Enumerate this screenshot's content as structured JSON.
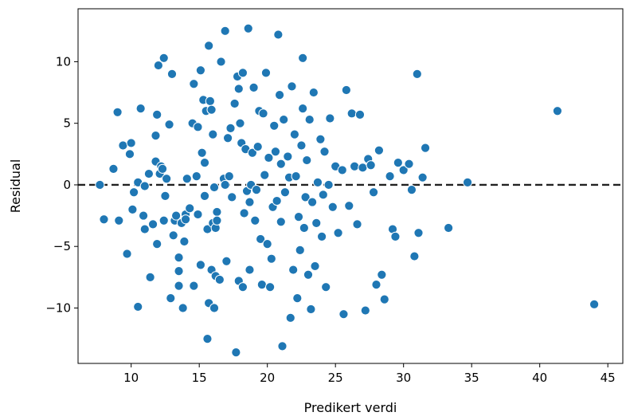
{
  "chart_data": {
    "type": "scatter",
    "xlabel": "Predikert verdi",
    "ylabel": "Residual",
    "xlim": [
      6.1,
      46.1
    ],
    "ylim": [
      -14.5,
      14.3
    ],
    "xticks": [
      10,
      15,
      20,
      25,
      30,
      35,
      40,
      45
    ],
    "yticks": [
      -10,
      -5,
      0,
      5,
      10
    ],
    "grid": false,
    "reference_line": {
      "y": 0,
      "style": "dashed"
    },
    "point_color": "#1f77b4",
    "points": [
      [
        7.7,
        0.0
      ],
      [
        8.0,
        -2.8
      ],
      [
        8.7,
        1.3
      ],
      [
        9.0,
        5.9
      ],
      [
        9.1,
        -2.9
      ],
      [
        9.4,
        3.2
      ],
      [
        9.7,
        -5.6
      ],
      [
        9.9,
        2.5
      ],
      [
        10.0,
        3.4
      ],
      [
        10.1,
        -2.0
      ],
      [
        10.2,
        -0.6
      ],
      [
        10.5,
        0.2
      ],
      [
        10.5,
        -9.9
      ],
      [
        10.7,
        6.2
      ],
      [
        10.9,
        -2.5
      ],
      [
        11.0,
        -0.1
      ],
      [
        11.0,
        -3.6
      ],
      [
        11.3,
        0.9
      ],
      [
        11.4,
        -7.5
      ],
      [
        11.6,
        -3.2
      ],
      [
        11.8,
        1.9
      ],
      [
        11.8,
        4.0
      ],
      [
        11.9,
        5.7
      ],
      [
        11.9,
        -4.8
      ],
      [
        12.0,
        9.7
      ],
      [
        12.1,
        0.9
      ],
      [
        12.2,
        1.5
      ],
      [
        12.3,
        1.3
      ],
      [
        12.4,
        -2.9
      ],
      [
        12.4,
        10.3
      ],
      [
        12.5,
        -0.9
      ],
      [
        12.6,
        0.5
      ],
      [
        12.8,
        4.9
      ],
      [
        12.9,
        -9.2
      ],
      [
        13.0,
        9.0
      ],
      [
        13.1,
        -4.1
      ],
      [
        13.2,
        -2.9
      ],
      [
        13.3,
        -2.5
      ],
      [
        13.5,
        -5.9
      ],
      [
        13.5,
        -7.0
      ],
      [
        13.5,
        -8.2
      ],
      [
        13.7,
        -3.1
      ],
      [
        13.8,
        -10.0
      ],
      [
        13.9,
        -4.6
      ],
      [
        14.0,
        -2.4
      ],
      [
        14.0,
        -2.8
      ],
      [
        14.1,
        0.5
      ],
      [
        14.3,
        -1.9
      ],
      [
        14.5,
        5.0
      ],
      [
        14.6,
        -8.2
      ],
      [
        14.6,
        8.2
      ],
      [
        14.8,
        0.7
      ],
      [
        14.9,
        -2.4
      ],
      [
        14.9,
        4.7
      ],
      [
        15.1,
        9.3
      ],
      [
        15.1,
        -6.5
      ],
      [
        15.2,
        2.6
      ],
      [
        15.3,
        6.9
      ],
      [
        15.4,
        1.8
      ],
      [
        15.4,
        -0.9
      ],
      [
        15.5,
        6.0
      ],
      [
        15.6,
        -12.5
      ],
      [
        15.6,
        -3.6
      ],
      [
        15.7,
        11.3
      ],
      [
        15.7,
        -9.6
      ],
      [
        15.8,
        6.8
      ],
      [
        15.9,
        6.1
      ],
      [
        15.9,
        -6.9
      ],
      [
        16.0,
        4.1
      ],
      [
        16.0,
        -3.1
      ],
      [
        16.1,
        -0.2
      ],
      [
        16.1,
        -10.0
      ],
      [
        16.2,
        -3.5
      ],
      [
        16.2,
        -7.4
      ],
      [
        16.3,
        -2.2
      ],
      [
        16.3,
        -2.9
      ],
      [
        16.5,
        -7.7
      ],
      [
        16.6,
        10.0
      ],
      [
        16.8,
        0.5
      ],
      [
        16.9,
        12.5
      ],
      [
        16.9,
        0.0
      ],
      [
        17.0,
        -6.2
      ],
      [
        17.1,
        3.8
      ],
      [
        17.2,
        0.7
      ],
      [
        17.3,
        4.6
      ],
      [
        17.4,
        -1.0
      ],
      [
        17.6,
        6.6
      ],
      [
        17.7,
        -13.6
      ],
      [
        17.8,
        8.8
      ],
      [
        17.9,
        7.8
      ],
      [
        17.9,
        -7.8
      ],
      [
        18.0,
        5.0
      ],
      [
        18.1,
        3.4
      ],
      [
        18.2,
        -8.3
      ],
      [
        18.2,
        9.1
      ],
      [
        18.3,
        -2.3
      ],
      [
        18.4,
        2.9
      ],
      [
        18.5,
        -0.5
      ],
      [
        18.6,
        12.7
      ],
      [
        18.7,
        -1.4
      ],
      [
        18.7,
        -6.9
      ],
      [
        18.8,
        0.0
      ],
      [
        18.9,
        2.6
      ],
      [
        19.0,
        7.9
      ],
      [
        19.1,
        -2.9
      ],
      [
        19.2,
        -0.4
      ],
      [
        19.3,
        3.1
      ],
      [
        19.4,
        6.0
      ],
      [
        19.5,
        -4.4
      ],
      [
        19.6,
        -8.1
      ],
      [
        19.7,
        5.8
      ],
      [
        19.8,
        0.8
      ],
      [
        19.9,
        9.1
      ],
      [
        20.0,
        -4.8
      ],
      [
        20.1,
        2.2
      ],
      [
        20.2,
        -8.3
      ],
      [
        20.3,
        -6.0
      ],
      [
        20.4,
        -1.8
      ],
      [
        20.5,
        4.8
      ],
      [
        20.6,
        2.7
      ],
      [
        20.7,
        -1.3
      ],
      [
        20.8,
        12.2
      ],
      [
        20.9,
        7.3
      ],
      [
        21.0,
        -3.0
      ],
      [
        21.0,
        1.7
      ],
      [
        21.1,
        -13.1
      ],
      [
        21.2,
        5.3
      ],
      [
        21.3,
        -0.6
      ],
      [
        21.5,
        2.3
      ],
      [
        21.6,
        0.6
      ],
      [
        21.7,
        -10.8
      ],
      [
        21.8,
        8.0
      ],
      [
        21.9,
        -6.9
      ],
      [
        22.0,
        4.1
      ],
      [
        22.1,
        0.7
      ],
      [
        22.2,
        -9.2
      ],
      [
        22.3,
        -2.6
      ],
      [
        22.4,
        -5.3
      ],
      [
        22.5,
        3.2
      ],
      [
        22.6,
        6.2
      ],
      [
        22.6,
        10.3
      ],
      [
        22.7,
        -3.5
      ],
      [
        22.8,
        -1.0
      ],
      [
        22.9,
        2.0
      ],
      [
        23.0,
        -7.3
      ],
      [
        23.1,
        5.3
      ],
      [
        23.2,
        -10.1
      ],
      [
        23.3,
        -1.4
      ],
      [
        23.4,
        7.5
      ],
      [
        23.5,
        -6.6
      ],
      [
        23.6,
        -3.1
      ],
      [
        23.7,
        0.2
      ],
      [
        23.9,
        3.7
      ],
      [
        24.0,
        -4.2
      ],
      [
        24.1,
        -0.8
      ],
      [
        24.2,
        2.7
      ],
      [
        24.3,
        -8.3
      ],
      [
        24.5,
        0.0
      ],
      [
        24.6,
        5.4
      ],
      [
        24.8,
        -1.8
      ],
      [
        25.0,
        1.5
      ],
      [
        25.2,
        -3.9
      ],
      [
        25.5,
        1.2
      ],
      [
        25.6,
        -10.5
      ],
      [
        25.8,
        7.7
      ],
      [
        26.0,
        -1.7
      ],
      [
        26.2,
        5.8
      ],
      [
        26.4,
        1.5
      ],
      [
        26.6,
        -3.2
      ],
      [
        26.8,
        5.7
      ],
      [
        27.0,
        1.4
      ],
      [
        27.2,
        -10.2
      ],
      [
        27.4,
        2.1
      ],
      [
        27.6,
        1.6
      ],
      [
        27.8,
        -0.6
      ],
      [
        28.0,
        -8.1
      ],
      [
        28.2,
        2.8
      ],
      [
        28.4,
        -7.3
      ],
      [
        28.6,
        -9.3
      ],
      [
        29.0,
        0.7
      ],
      [
        29.2,
        -3.6
      ],
      [
        29.4,
        -4.2
      ],
      [
        29.6,
        1.8
      ],
      [
        30.0,
        1.2
      ],
      [
        30.4,
        1.7
      ],
      [
        30.6,
        -0.4
      ],
      [
        30.8,
        -5.8
      ],
      [
        31.0,
        9.0
      ],
      [
        31.1,
        -3.9
      ],
      [
        31.4,
        0.6
      ],
      [
        31.6,
        3.0
      ],
      [
        33.3,
        -3.5
      ],
      [
        34.7,
        0.2
      ],
      [
        41.3,
        6.0
      ],
      [
        44.0,
        -9.7
      ]
    ]
  }
}
